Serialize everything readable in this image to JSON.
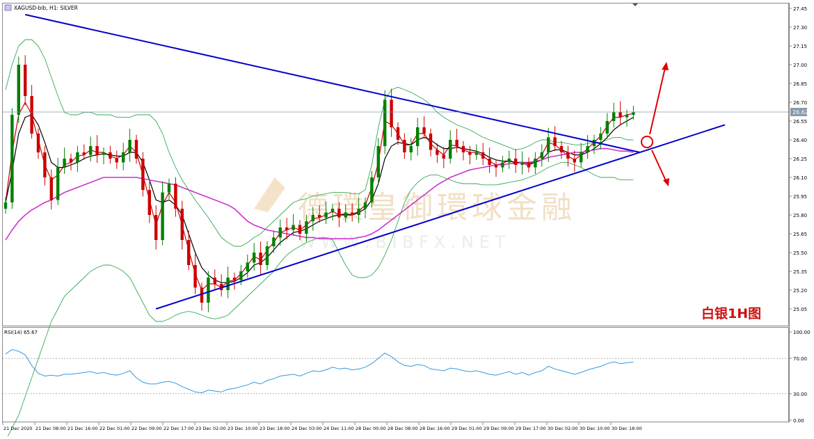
{
  "header": {
    "symbol_title": "XAGUSD-bib, H1: SILVER",
    "rsi_title": "RSI(14) 65.67"
  },
  "watermark": {
    "chinese": "德璞皇御環球金融",
    "url": "W W W . B I B F X . N E T"
  },
  "annotation": {
    "label": "白银1H图"
  },
  "current_price_label": "26.62",
  "colors": {
    "candle_up": "#008000",
    "candle_down": "#cc0000",
    "ma_fast": "#cc0000",
    "ma_mid": "#000000",
    "ma_slow": "#cc33cc",
    "bollinger": "#33aa55",
    "trendline": "#0000cc",
    "rsi_line": "#3399dd",
    "annotation": "#dd0000"
  },
  "chart_data": [
    {
      "type": "candlestick",
      "title": "XAGUSD-bib, H1: SILVER",
      "ylim": [
        24.95,
        27.45
      ],
      "y_ticks": [
        "27.45",
        "27.30",
        "27.15",
        "27.00",
        "26.85",
        "26.70",
        "26.55",
        "26.40",
        "26.25",
        "26.10",
        "25.95",
        "25.80",
        "25.65",
        "25.50",
        "25.35",
        "25.20",
        "25.05"
      ],
      "x_ticks": [
        "21 Dec 2020",
        "21 Dec 08:00",
        "21 Dec 16:00",
        "22 Dec 01:00",
        "22 Dec 09:00",
        "22 Dec 17:00",
        "23 Dec 02:00",
        "23 Dec 10:00",
        "23 Dec 18:00",
        "24 Dec 03:00",
        "24 Dec 11:00",
        "28 Dec 00:00",
        "28 Dec 08:00",
        "28 Dec 16:00",
        "29 Dec 01:00",
        "29 Dec 09:00",
        "29 Dec 17:00",
        "30 Dec 02:00",
        "30 Dec 10:00",
        "30 Dec 18:00"
      ],
      "current_price": 26.62,
      "close": [
        25.9,
        26.6,
        27.0,
        26.75,
        26.45,
        26.3,
        26.1,
        25.92,
        26.18,
        26.25,
        26.22,
        26.3,
        26.28,
        26.35,
        26.28,
        26.3,
        26.25,
        26.22,
        26.3,
        26.4,
        26.25,
        26.0,
        25.8,
        25.6,
        25.98,
        26.05,
        25.85,
        25.6,
        25.4,
        25.22,
        25.1,
        25.3,
        25.25,
        25.2,
        25.3,
        25.28,
        25.35,
        25.42,
        25.5,
        25.4,
        25.55,
        25.62,
        25.7,
        25.68,
        25.72,
        25.65,
        25.75,
        25.8,
        25.78,
        25.82,
        25.85,
        25.78,
        25.82,
        25.8,
        25.85,
        25.9,
        26.1,
        26.35,
        26.72,
        26.5,
        26.4,
        26.3,
        26.35,
        26.5,
        26.45,
        26.32,
        26.28,
        26.25,
        26.4,
        26.35,
        26.3,
        26.28,
        26.3,
        26.25,
        26.2,
        26.18,
        26.22,
        26.25,
        26.2,
        26.22,
        26.18,
        26.25,
        26.3,
        26.42,
        26.35,
        26.3,
        26.25,
        26.22,
        26.3,
        26.35,
        26.4,
        26.45,
        26.55,
        26.62,
        26.58,
        26.6,
        26.62
      ],
      "moving_averages": [
        {
          "period_hint": "fast",
          "values": [
            25.9,
            26.3,
            26.6,
            26.7,
            26.6,
            26.4,
            26.2,
            26.08,
            26.12,
            26.2,
            26.22,
            26.27,
            26.28,
            26.32,
            26.3,
            26.3,
            26.27,
            26.25,
            26.28,
            26.35,
            26.3,
            26.12,
            25.92,
            25.72,
            25.88,
            25.98,
            25.9,
            25.72,
            25.52,
            25.33,
            25.2,
            25.25,
            25.25,
            25.22,
            25.27,
            25.28,
            25.33,
            25.4,
            25.47,
            25.44,
            25.52,
            25.58,
            25.66,
            25.68,
            25.7,
            25.68,
            25.72,
            25.77,
            25.78,
            25.8,
            25.83,
            25.8,
            25.81,
            25.8,
            25.83,
            25.88,
            26.02,
            26.22,
            26.55,
            26.52,
            26.45,
            26.36,
            26.36,
            26.45,
            26.45,
            26.37,
            26.32,
            26.28,
            26.36,
            26.35,
            26.32,
            26.3,
            26.3,
            26.27,
            26.23,
            26.2,
            26.21,
            26.24,
            26.21,
            26.22,
            26.19,
            26.23,
            26.28,
            26.38,
            26.36,
            26.32,
            26.27,
            26.24,
            26.28,
            26.33,
            26.38,
            26.43,
            26.51,
            26.58,
            26.58,
            26.6,
            26.61
          ]
        },
        {
          "period_hint": "mid",
          "values": [
            25.9,
            26.15,
            26.45,
            26.58,
            26.6,
            26.52,
            26.38,
            26.22,
            26.18,
            26.18,
            26.2,
            26.22,
            26.25,
            26.27,
            26.28,
            26.29,
            26.28,
            26.27,
            26.27,
            26.3,
            26.3,
            26.22,
            26.08,
            25.92,
            25.9,
            25.92,
            25.88,
            25.8,
            25.65,
            25.5,
            25.38,
            25.32,
            25.28,
            25.26,
            25.26,
            25.27,
            25.3,
            25.34,
            25.4,
            25.42,
            25.46,
            25.52,
            25.58,
            25.62,
            25.66,
            25.67,
            25.69,
            25.72,
            25.75,
            25.77,
            25.79,
            25.8,
            25.8,
            25.8,
            25.82,
            25.85,
            25.92,
            26.05,
            26.25,
            26.35,
            26.38,
            26.37,
            26.36,
            26.4,
            26.42,
            26.4,
            26.36,
            26.33,
            26.33,
            26.34,
            26.33,
            26.32,
            26.31,
            26.29,
            26.26,
            26.24,
            26.23,
            26.23,
            26.22,
            26.22,
            26.21,
            26.22,
            26.24,
            26.3,
            26.32,
            26.32,
            26.3,
            26.28,
            26.28,
            26.3,
            26.33,
            26.37,
            26.42,
            26.48,
            26.52,
            26.55,
            26.58
          ]
        },
        {
          "period_hint": "slow",
          "values": [
            25.6,
            25.68,
            25.75,
            25.8,
            25.84,
            25.87,
            25.9,
            25.92,
            25.95,
            25.98,
            26.0,
            26.02,
            26.04,
            26.06,
            26.08,
            26.1,
            26.1,
            26.1,
            26.1,
            26.1,
            26.1,
            26.09,
            26.08,
            26.07,
            26.06,
            26.05,
            26.04,
            26.02,
            26.0,
            25.98,
            25.96,
            25.94,
            25.92,
            25.9,
            25.88,
            25.85,
            25.8,
            25.75,
            25.72,
            25.7,
            25.68,
            25.67,
            25.66,
            25.65,
            25.64,
            25.63,
            25.62,
            25.62,
            25.61,
            25.61,
            25.61,
            25.61,
            25.61,
            25.61,
            25.62,
            25.63,
            25.65,
            25.68,
            25.72,
            25.76,
            25.8,
            25.84,
            25.88,
            25.92,
            25.96,
            26.0,
            26.04,
            26.07,
            26.1,
            26.12,
            26.14,
            26.16,
            26.17,
            26.18,
            26.19,
            26.2,
            26.2,
            26.21,
            26.21,
            26.22,
            26.22,
            26.23,
            26.24,
            26.26,
            26.27,
            26.28,
            26.29,
            26.3,
            26.3,
            26.31,
            26.32,
            26.33,
            26.33,
            26.32,
            26.31,
            26.31,
            26.3
          ]
        }
      ],
      "bollinger_upper": [
        26.8,
        27.0,
        27.15,
        27.2,
        27.2,
        27.15,
        27.05,
        26.9,
        26.75,
        26.62,
        26.6,
        26.6,
        26.62,
        26.62,
        26.6,
        26.6,
        26.6,
        26.58,
        26.58,
        26.58,
        26.6,
        26.6,
        26.6,
        26.55,
        26.45,
        26.3,
        26.18,
        26.08,
        26.0,
        25.92,
        25.85,
        25.78,
        25.7,
        25.62,
        25.58,
        25.55,
        25.55,
        25.58,
        25.62,
        25.65,
        25.7,
        25.75,
        25.8,
        25.85,
        25.9,
        25.92,
        25.93,
        25.95,
        25.96,
        25.97,
        25.98,
        25.98,
        25.98,
        25.97,
        25.97,
        26.0,
        26.2,
        26.5,
        26.72,
        26.8,
        26.82,
        26.8,
        26.78,
        26.75,
        26.72,
        26.68,
        26.62,
        26.58,
        26.55,
        26.52,
        26.5,
        26.48,
        26.45,
        26.42,
        26.4,
        26.38,
        26.36,
        26.34,
        26.32,
        26.33,
        26.35,
        26.38,
        26.4,
        26.4,
        26.38,
        26.38,
        26.37,
        26.36,
        26.36,
        26.37,
        26.38,
        26.38,
        26.4,
        26.42,
        26.42,
        26.4,
        26.4
      ],
      "bollinger_lower": [
        24.0,
        24.1,
        24.2,
        24.35,
        24.5,
        24.65,
        24.8,
        24.95,
        25.05,
        25.15,
        25.2,
        25.25,
        25.3,
        25.35,
        25.38,
        25.4,
        25.4,
        25.38,
        25.35,
        25.3,
        25.2,
        25.1,
        25.0,
        24.95,
        24.95,
        24.97,
        25.0,
        25.02,
        25.03,
        25.02,
        25.0,
        24.98,
        24.97,
        24.98,
        25.0,
        25.05,
        25.1,
        25.15,
        25.2,
        25.25,
        25.3,
        25.35,
        25.42,
        25.48,
        25.52,
        25.55,
        25.58,
        25.6,
        25.62,
        25.62,
        25.6,
        25.5,
        25.4,
        25.32,
        25.3,
        25.3,
        25.32,
        25.38,
        25.48,
        25.6,
        25.75,
        25.9,
        26.0,
        26.06,
        26.1,
        26.12,
        26.12,
        26.1,
        26.08,
        26.06,
        26.05,
        26.05,
        26.05,
        26.04,
        26.04,
        26.04,
        26.05,
        26.06,
        26.07,
        26.08,
        26.1,
        26.12,
        26.15,
        26.18,
        26.2,
        26.22,
        26.22,
        26.2,
        26.18,
        26.15,
        26.12,
        26.1,
        26.1,
        26.1,
        26.08,
        26.08,
        26.08
      ],
      "trendlines": [
        {
          "from": {
            "x_index": 3,
            "y": 27.4
          },
          "to": {
            "x_index": 97,
            "y": 26.3
          }
        },
        {
          "from": {
            "x_index": 23,
            "y": 25.05
          },
          "to": {
            "x_index": 110,
            "y": 26.52
          }
        }
      ]
    },
    {
      "type": "line",
      "title": "RSI(14) 65.67",
      "ylim": [
        0,
        100
      ],
      "y_ticks": [
        "100.00",
        "70.00",
        "30.00",
        "0.00"
      ],
      "levels": [
        70,
        30
      ],
      "values": [
        75,
        80,
        78,
        74,
        62,
        53,
        50,
        51,
        50,
        52,
        52,
        53,
        54,
        55,
        53,
        54,
        52,
        51,
        53,
        56,
        48,
        43,
        41,
        41,
        43,
        44,
        42,
        38,
        35,
        32,
        31,
        34,
        33,
        32,
        35,
        36,
        38,
        40,
        43,
        41,
        45,
        47,
        50,
        51,
        52,
        50,
        53,
        56,
        55,
        57,
        60,
        58,
        59,
        57,
        58,
        60,
        64,
        70,
        76,
        72,
        66,
        62,
        61,
        63,
        62,
        58,
        57,
        56,
        59,
        58,
        56,
        55,
        56,
        54,
        52,
        51,
        53,
        55,
        52,
        54,
        51,
        54,
        56,
        61,
        58,
        56,
        54,
        52,
        54,
        57,
        59,
        61,
        64,
        66,
        64,
        65,
        66
      ]
    }
  ]
}
